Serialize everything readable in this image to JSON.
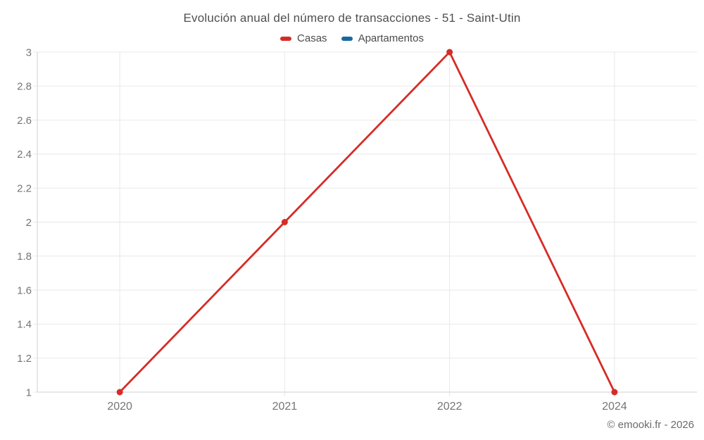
{
  "chart_data": {
    "type": "line",
    "title": "Evolución anual del número de transacciones - 51 - Saint-Utin",
    "categories": [
      "2020",
      "2021",
      "2022",
      "2024"
    ],
    "series": [
      {
        "name": "Casas",
        "color": "#d62c26",
        "values": [
          1,
          2,
          3,
          1
        ]
      },
      {
        "name": "Apartamentos",
        "color": "#17699f",
        "values": []
      }
    ],
    "xlabel": "",
    "ylabel": "",
    "ylim": [
      1,
      3
    ],
    "y_ticks": [
      "1",
      "1.2",
      "1.4",
      "1.6",
      "1.8",
      "2",
      "2.2",
      "2.4",
      "2.6",
      "2.8",
      "3"
    ],
    "grid": true,
    "legend_position": "top"
  },
  "footer": {
    "watermark": "© emooki.fr - 2026"
  }
}
